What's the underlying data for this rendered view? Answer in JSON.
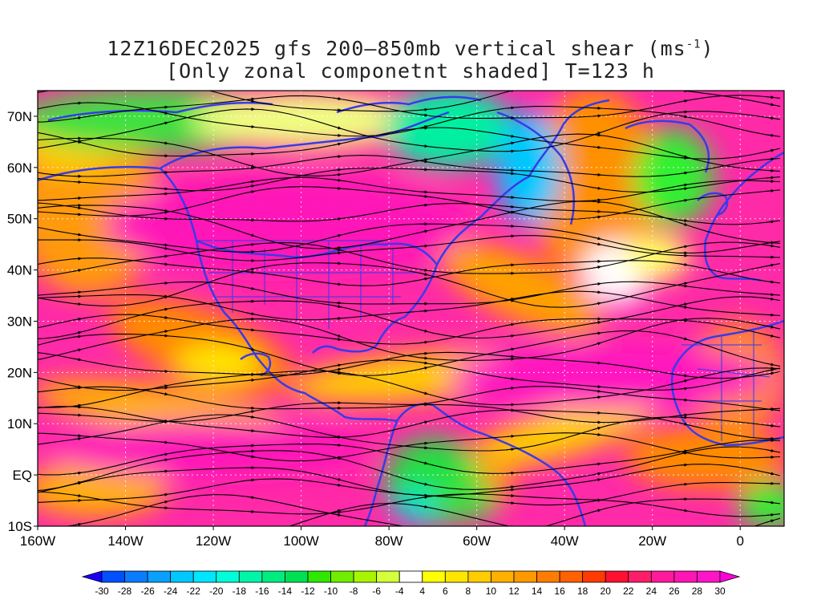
{
  "title": {
    "line1_prefix": "12Z16DEC2025 gfs 200–850mb vertical shear (ms",
    "line1_sup": "-1",
    "line1_suffix": ")",
    "line2": "[Only zonal componetnt shaded] T=123 h"
  },
  "map": {
    "lat_labels": [
      "70N",
      "60N",
      "50N",
      "40N",
      "30N",
      "20N",
      "10N",
      "EQ",
      "10S"
    ],
    "lon_labels": [
      "160W",
      "140W",
      "120W",
      "100W",
      "80W",
      "60W",
      "40W",
      "20W",
      "0"
    ],
    "lat_values": [
      70,
      60,
      50,
      40,
      30,
      20,
      10,
      0,
      -10
    ],
    "lon_values": [
      -160,
      -140,
      -120,
      -100,
      -80,
      -60,
      -40,
      -20,
      0
    ],
    "extent": {
      "lon_min": -160,
      "lon_max": 10,
      "lat_min": -10,
      "lat_max": 75
    },
    "coastline_color": "#3a3ae8",
    "streamline_color": "#000000",
    "grid_color": "#ffffff"
  },
  "colorbar": {
    "labels": [
      "-30",
      "-28",
      "-26",
      "-24",
      "-22",
      "-20",
      "-18",
      "-16",
      "-14",
      "-12",
      "-10",
      "-8",
      "-6",
      "-4",
      "4",
      "6",
      "8",
      "10",
      "12",
      "14",
      "16",
      "18",
      "20",
      "22",
      "24",
      "26",
      "28",
      "30"
    ],
    "colors": [
      "#1a00f5",
      "#0050ff",
      "#0a7dff",
      "#0aa0ff",
      "#00c8ff",
      "#00e6ff",
      "#00ffd9",
      "#00f5a8",
      "#00ec80",
      "#00e055",
      "#2ee800",
      "#70ee00",
      "#a8f500",
      "#d4ff3a",
      "#ffffff",
      "#ffff00",
      "#ffe600",
      "#ffcc00",
      "#ffb000",
      "#ff9900",
      "#ff7d00",
      "#ff6000",
      "#ff3a00",
      "#ff1030",
      "#ff1d6a",
      "#ff1a9c",
      "#ff14b4",
      "#ff14c8",
      "#ff00d8"
    ]
  }
}
